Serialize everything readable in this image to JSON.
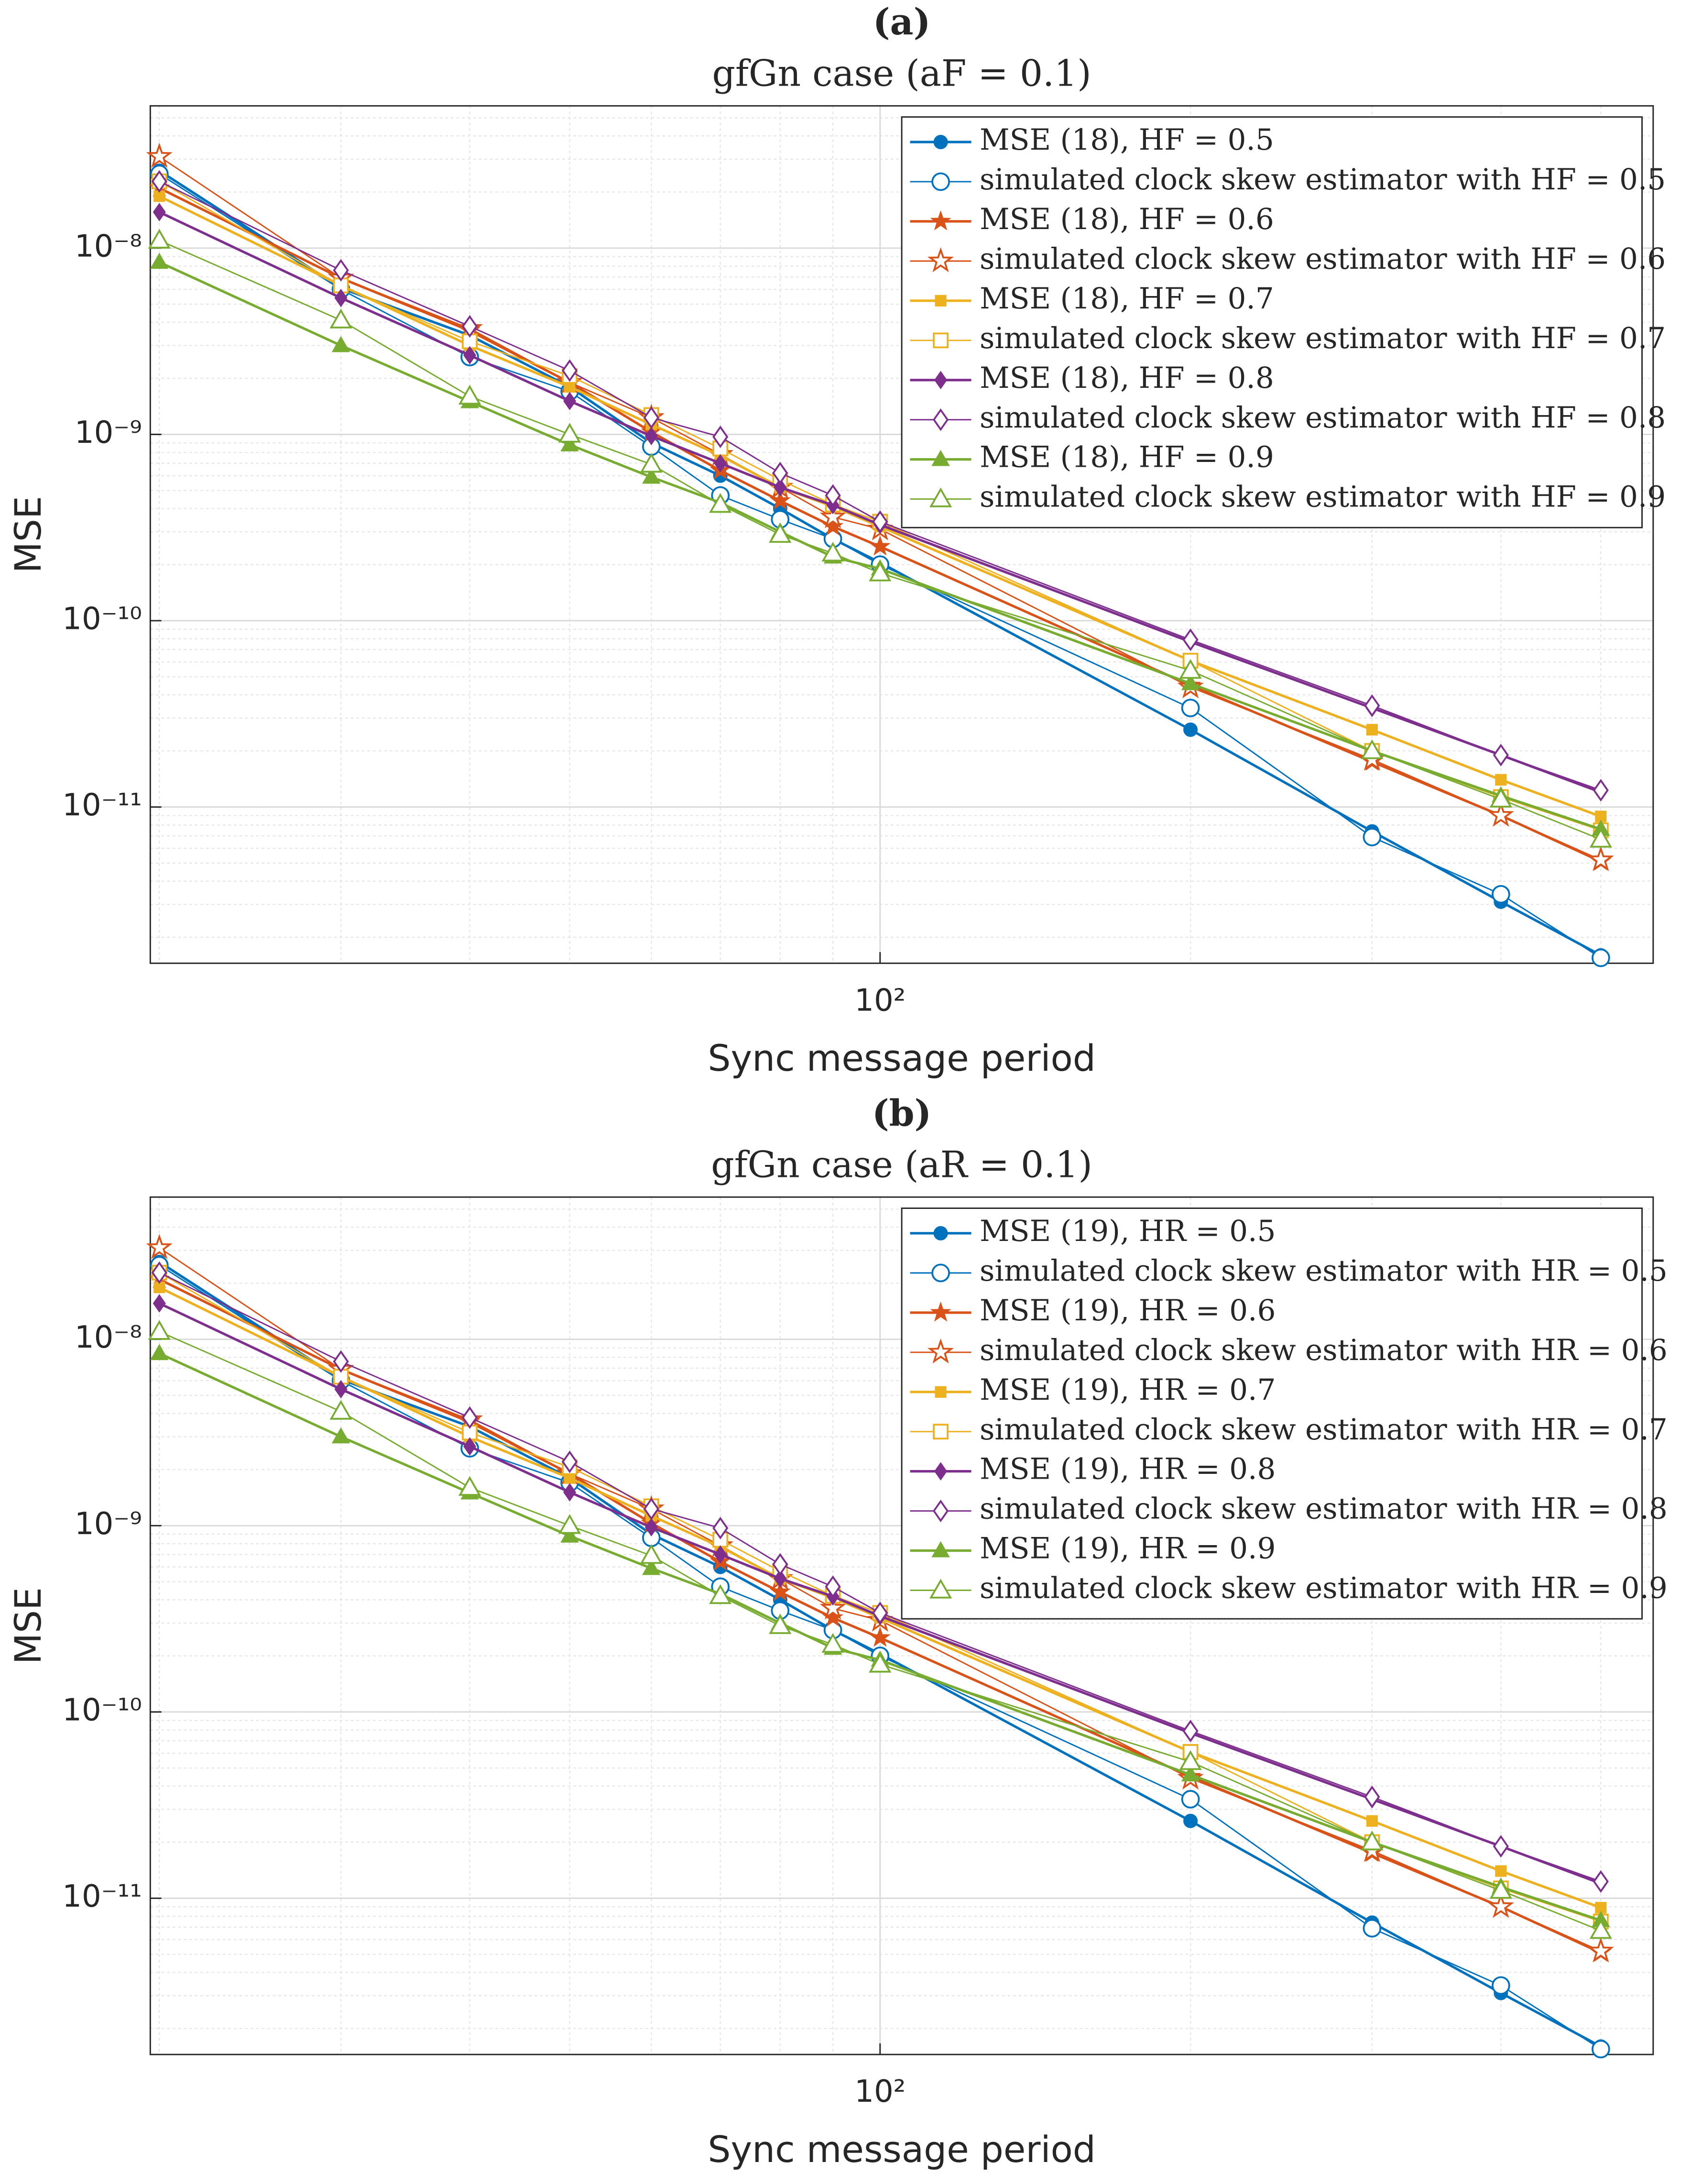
{
  "chart_data": [
    {
      "type": "line",
      "panel_label": "(a)",
      "title": "gfGn case (aF = 0.1)",
      "xlabel": "Sync message period",
      "ylabel": "MSE",
      "xscale": "log",
      "yscale": "log",
      "grid": true,
      "minor_grid": true,
      "legend": "upper right",
      "xlim": [
        19.6,
        562
      ],
      "ylim": [
        1.45e-12,
        5.8e-08
      ],
      "xticks": [
        {
          "value": 100,
          "label": "10²"
        }
      ],
      "yticks": [
        {
          "value": 1e-11,
          "label": "10⁻¹¹"
        },
        {
          "value": 1e-10,
          "label": "10⁻¹⁰"
        },
        {
          "value": 1e-09,
          "label": "10⁻⁹"
        },
        {
          "value": 1e-08,
          "label": "10⁻⁸"
        }
      ],
      "x": [
        20,
        30,
        40,
        50,
        60,
        70,
        80,
        90,
        100,
        200,
        300,
        400,
        500
      ],
      "series": [
        {
          "name": "MSE (18), HF = 0.5",
          "color": "#0072BD",
          "marker": "circle",
          "filled": true,
          "values": [
            2.6e-08,
            6.1e-09,
            3.4e-09,
            1.8e-09,
            9e-10,
            6e-10,
            4e-10,
            2.75e-10,
            2.05e-10,
            2.6e-11,
            7.4e-12,
            3.1e-12,
            1.6e-12
          ]
        },
        {
          "name": "simulated clock skew estimator with HF = 0.5",
          "color": "#0072BD",
          "marker": "circle",
          "filled": false,
          "values": [
            2.5e-08,
            6e-09,
            2.6e-09,
            1.7e-09,
            8.6e-10,
            4.7e-10,
            3.5e-10,
            2.75e-10,
            2e-10,
            3.4e-11,
            6.9e-12,
            3.4e-12,
            1.55e-12
          ]
        },
        {
          "name": "MSE (18), HF = 0.6",
          "color": "#D95319",
          "marker": "star",
          "filled": true,
          "values": [
            2.1e-08,
            6.9e-09,
            3.6e-09,
            1.9e-09,
            1.03e-09,
            6.4e-10,
            4.4e-10,
            3.2e-10,
            2.5e-10,
            4.5e-11,
            1.75e-11,
            9e-12,
            5.1e-12
          ]
        },
        {
          "name": "simulated clock skew estimator with HF = 0.6",
          "color": "#D95319",
          "marker": "star",
          "filled": false,
          "values": [
            3.1e-08,
            6.9e-09,
            3.7e-09,
            1.9e-09,
            1.23e-09,
            7.8e-10,
            5.2e-10,
            3.6e-10,
            3.1e-10,
            4.4e-11,
            1.8e-11,
            9e-12,
            5.2e-12
          ]
        },
        {
          "name": "MSE (18), HF = 0.7",
          "color": "#EDB120",
          "marker": "square",
          "filled": true,
          "values": [
            1.9e-08,
            6.3e-09,
            3e-09,
            1.8e-09,
            1.13e-09,
            7.7e-10,
            5.2e-10,
            4.1e-10,
            3.2e-10,
            6.1e-11,
            2.6e-11,
            1.4e-11,
            8.9e-12
          ]
        },
        {
          "name": "simulated clock skew estimator with HF = 0.7",
          "color": "#EDB120",
          "marker": "square",
          "filled": false,
          "values": [
            2.28e-08,
            6.3e-09,
            3.16e-09,
            2.06e-09,
            1.27e-09,
            8.4e-10,
            5.7e-10,
            4.2e-10,
            3.4e-10,
            6.1e-11,
            2e-11,
            1.13e-11,
            7.5e-12
          ]
        },
        {
          "name": "MSE (18), HF = 0.8",
          "color": "#7E2F8E",
          "marker": "diamond",
          "filled": true,
          "values": [
            1.56e-08,
            5.4e-09,
            2.66e-09,
            1.51e-09,
            9.8e-10,
            7e-10,
            5.2e-10,
            4.17e-10,
            3.27e-10,
            7.7e-11,
            3.4e-11,
            1.9e-11,
            1.2e-11
          ]
        },
        {
          "name": "simulated clock skew estimator with HF = 0.8",
          "color": "#7E2F8E",
          "marker": "diamond",
          "filled": false,
          "values": [
            2.28e-08,
            7.6e-09,
            3.8e-09,
            2.2e-09,
            1.23e-09,
            9.7e-10,
            6.2e-10,
            4.7e-10,
            3.4e-10,
            7.9e-11,
            3.5e-11,
            1.9e-11,
            1.23e-11
          ]
        },
        {
          "name": "MSE (18), HF = 0.9",
          "color": "#77AC30",
          "marker": "triangle",
          "filled": true,
          "values": [
            8.4e-09,
            3e-09,
            1.5e-09,
            8.8e-10,
            5.9e-10,
            4.3e-10,
            3e-10,
            2.2e-10,
            1.9e-10,
            4.6e-11,
            2e-11,
            1.15e-11,
            7.6e-12
          ]
        },
        {
          "name": "simulated clock skew estimator with HF = 0.9",
          "color": "#77AC30",
          "marker": "triangle",
          "filled": false,
          "values": [
            1.1e-08,
            4.1e-09,
            1.6e-09,
            1e-09,
            6.9e-10,
            4.2e-10,
            2.9e-10,
            2.3e-10,
            1.8e-10,
            5.4e-11,
            2e-11,
            1.1e-11,
            6.7e-12
          ]
        }
      ]
    },
    {
      "type": "line",
      "panel_label": "(b)",
      "title": "gfGn case (aR = 0.1)",
      "xlabel": "Sync message period",
      "ylabel": "MSE",
      "xscale": "log",
      "yscale": "log",
      "grid": true,
      "minor_grid": true,
      "legend": "upper right",
      "xlim": [
        19.6,
        562
      ],
      "ylim": [
        1.45e-12,
        5.8e-08
      ],
      "xticks": [
        {
          "value": 100,
          "label": "10²"
        }
      ],
      "yticks": [
        {
          "value": 1e-11,
          "label": "10⁻¹¹"
        },
        {
          "value": 1e-10,
          "label": "10⁻¹⁰"
        },
        {
          "value": 1e-09,
          "label": "10⁻⁹"
        },
        {
          "value": 1e-08,
          "label": "10⁻⁸"
        }
      ],
      "x": [
        20,
        30,
        40,
        50,
        60,
        70,
        80,
        90,
        100,
        200,
        300,
        400,
        500
      ],
      "series": [
        {
          "name": "MSE (19), HR = 0.5",
          "color": "#0072BD",
          "marker": "circle",
          "filled": true,
          "values": [
            2.6e-08,
            6.1e-09,
            3.4e-09,
            1.8e-09,
            9e-10,
            6e-10,
            4e-10,
            2.75e-10,
            2.05e-10,
            2.6e-11,
            7.4e-12,
            3.1e-12,
            1.6e-12
          ]
        },
        {
          "name": "simulated clock skew estimator with HR = 0.5",
          "color": "#0072BD",
          "marker": "circle",
          "filled": false,
          "values": [
            2.5e-08,
            6e-09,
            2.6e-09,
            1.7e-09,
            8.6e-10,
            4.7e-10,
            3.5e-10,
            2.75e-10,
            2e-10,
            3.4e-11,
            6.9e-12,
            3.4e-12,
            1.55e-12
          ]
        },
        {
          "name": "MSE (19), HR = 0.6",
          "color": "#D95319",
          "marker": "star",
          "filled": true,
          "values": [
            2.1e-08,
            6.9e-09,
            3.6e-09,
            1.9e-09,
            1.03e-09,
            6.4e-10,
            4.4e-10,
            3.2e-10,
            2.5e-10,
            4.5e-11,
            1.75e-11,
            9e-12,
            5.1e-12
          ]
        },
        {
          "name": "simulated clock skew estimator with HR = 0.6",
          "color": "#D95319",
          "marker": "star",
          "filled": false,
          "values": [
            3.1e-08,
            6.9e-09,
            3.7e-09,
            1.9e-09,
            1.23e-09,
            7.8e-10,
            5.2e-10,
            3.6e-10,
            3.1e-10,
            4.4e-11,
            1.8e-11,
            9e-12,
            5.2e-12
          ]
        },
        {
          "name": "MSE (19), HR = 0.7",
          "color": "#EDB120",
          "marker": "square",
          "filled": true,
          "values": [
            1.9e-08,
            6.3e-09,
            3e-09,
            1.8e-09,
            1.13e-09,
            7.7e-10,
            5.2e-10,
            4.1e-10,
            3.2e-10,
            6.1e-11,
            2.6e-11,
            1.4e-11,
            8.9e-12
          ]
        },
        {
          "name": "simulated clock skew estimator with HR = 0.7",
          "color": "#EDB120",
          "marker": "square",
          "filled": false,
          "values": [
            2.28e-08,
            6.3e-09,
            3.16e-09,
            2.06e-09,
            1.27e-09,
            8.4e-10,
            5.7e-10,
            4.2e-10,
            3.4e-10,
            6.1e-11,
            2e-11,
            1.13e-11,
            7.5e-12
          ]
        },
        {
          "name": "MSE (19), HR = 0.8",
          "color": "#7E2F8E",
          "marker": "diamond",
          "filled": true,
          "values": [
            1.56e-08,
            5.4e-09,
            2.66e-09,
            1.51e-09,
            9.8e-10,
            7e-10,
            5.2e-10,
            4.17e-10,
            3.27e-10,
            7.7e-11,
            3.4e-11,
            1.9e-11,
            1.2e-11
          ]
        },
        {
          "name": "simulated clock skew estimator with HR = 0.8",
          "color": "#7E2F8E",
          "marker": "diamond",
          "filled": false,
          "values": [
            2.28e-08,
            7.6e-09,
            3.8e-09,
            2.2e-09,
            1.23e-09,
            9.7e-10,
            6.2e-10,
            4.7e-10,
            3.4e-10,
            7.9e-11,
            3.5e-11,
            1.9e-11,
            1.23e-11
          ]
        },
        {
          "name": "MSE (19), HR = 0.9",
          "color": "#77AC30",
          "marker": "triangle",
          "filled": true,
          "values": [
            8.4e-09,
            3e-09,
            1.5e-09,
            8.8e-10,
            5.9e-10,
            4.3e-10,
            3e-10,
            2.2e-10,
            1.9e-10,
            4.6e-11,
            2e-11,
            1.15e-11,
            7.6e-12
          ]
        },
        {
          "name": "simulated clock skew estimator with HR = 0.9",
          "color": "#77AC30",
          "marker": "triangle",
          "filled": false,
          "values": [
            1.1e-08,
            4.1e-09,
            1.6e-09,
            1e-09,
            6.9e-10,
            4.2e-10,
            2.9e-10,
            2.3e-10,
            1.8e-10,
            5.4e-11,
            2e-11,
            1.1e-11,
            6.7e-12
          ]
        }
      ]
    }
  ]
}
